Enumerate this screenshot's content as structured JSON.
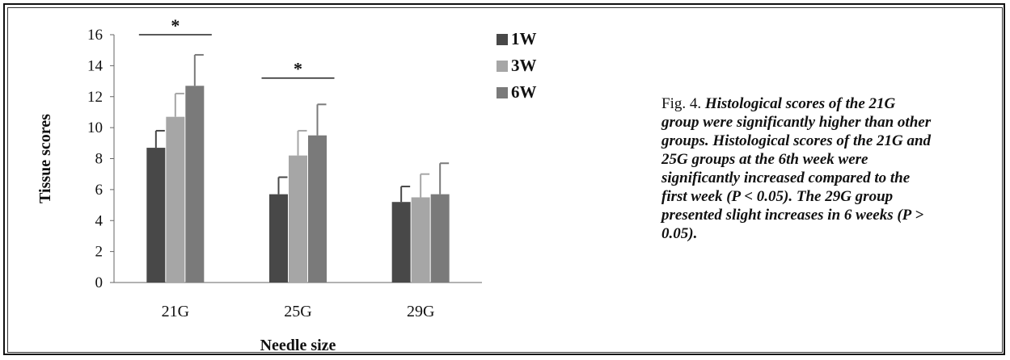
{
  "chart_data": {
    "type": "bar",
    "xlabel": "Needle size",
    "ylabel": "Tissue scores",
    "ylim": [
      0,
      16
    ],
    "yticks": [
      0,
      2,
      4,
      6,
      8,
      10,
      12,
      14,
      16
    ],
    "categories": [
      "21G",
      "25G",
      "29G"
    ],
    "series": [
      {
        "name": "1W",
        "color": "#484848",
        "values": [
          8.7,
          5.7,
          5.2
        ],
        "errors": [
          1.1,
          1.1,
          1.0
        ]
      },
      {
        "name": "3W",
        "color": "#a6a6a6",
        "values": [
          10.7,
          8.2,
          5.5
        ],
        "errors": [
          1.5,
          1.6,
          1.5
        ]
      },
      {
        "name": "6W",
        "color": "#7a7a7a",
        "values": [
          12.7,
          9.5,
          5.7
        ],
        "errors": [
          2.0,
          2.0,
          2.0
        ]
      }
    ],
    "annotations": [
      {
        "text": "*",
        "group": "21G",
        "y": 16
      },
      {
        "text": "*",
        "group": "25G",
        "y": 13.2
      }
    ],
    "legend": "right",
    "grid": false
  },
  "caption": {
    "lead": "Fig. 4. ",
    "body": "Histological scores of the 21G group were significantly higher than other groups. Histological scores of the 21G and 25G groups at the 6th week were significantly increased compared to the first week (P < 0.05). The 29G group presented slight increases in 6 weeks (P > 0.05)."
  }
}
